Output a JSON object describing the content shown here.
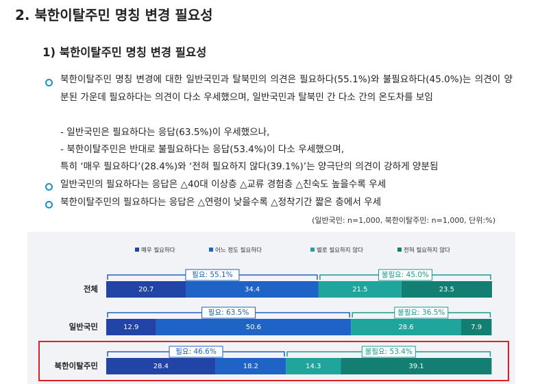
{
  "section_title": "2. 북한이탈주민 명칭 변경 필요성",
  "subsection_title": "1) 북한이탈주민 명칭 변경 필요성",
  "bullets": [
    {
      "text": "북한이탈주민 명칭 변경에 대한 일반국민과 탈북민의 의견은 필요하다(55.1%)와 불필요하다(45.0%)는 의견이 양분된 가운데 필요하다는 의견이 다소 우세했으며, 일반국민과 탈북민 간 다소 간의 온도차를 보임",
      "sub_items": [
        "- 일반국민은 필요하다는 응답(63.5%)이 우세했으나,",
        "- 북한이탈주민은 반대로 불필요하다는 응답(53.4%)이 다소 우세했으며,",
        "특히 ‘매우 필요하다’(28.4%)와 ‘전혀 필요하지 않다(39.1%)’는 양극단의 의견이 강하게 양분됨"
      ]
    },
    {
      "text": "일반국민의 필요하다는 응답은 △40대 이상층 △교류 경험층 △친숙도 높을수록 우세"
    },
    {
      "text": "북한이탈주민의 필요하다는 응답은 △연령이 낮을수록 △정착기간 짧은 층에서 우세"
    }
  ],
  "note": "(일반국민: n=1,000, 북한이탈주민: n=1,000, 단위:%)",
  "chart_data": {
    "type": "stacked_bar",
    "orientation": "horizontal",
    "categories": [
      "전체",
      "일반국민",
      "북한이탈주민"
    ],
    "series": [
      {
        "name": "매우 필요하다",
        "color": "#2244a6",
        "values": [
          20.7,
          12.9,
          28.4
        ]
      },
      {
        "name": "어느 정도 필요하다",
        "color": "#1f63c6",
        "values": [
          34.4,
          50.6,
          18.2
        ]
      },
      {
        "name": "별로 필요하지 않다",
        "color": "#1fa59c",
        "values": [
          21.5,
          28.6,
          14.3
        ]
      },
      {
        "name": "전혀 필요하지 않다",
        "color": "#137f72",
        "values": [
          23.5,
          7.9,
          39.1
        ]
      }
    ],
    "need_totals": {
      "color": "#1f5fc0",
      "values": [
        55.1,
        63.5,
        46.6
      ],
      "value_labels": [
        "필요: 55.1%",
        "필요: 63.5%",
        "필요: 46.6%"
      ]
    },
    "not_need_totals": {
      "color": "#1a9a8e",
      "values": [
        45.0,
        36.5,
        53.4
      ],
      "value_labels": [
        "불필요: 45.0%",
        "불필요: 36.5%",
        "불필요: 53.4%"
      ]
    }
  }
}
